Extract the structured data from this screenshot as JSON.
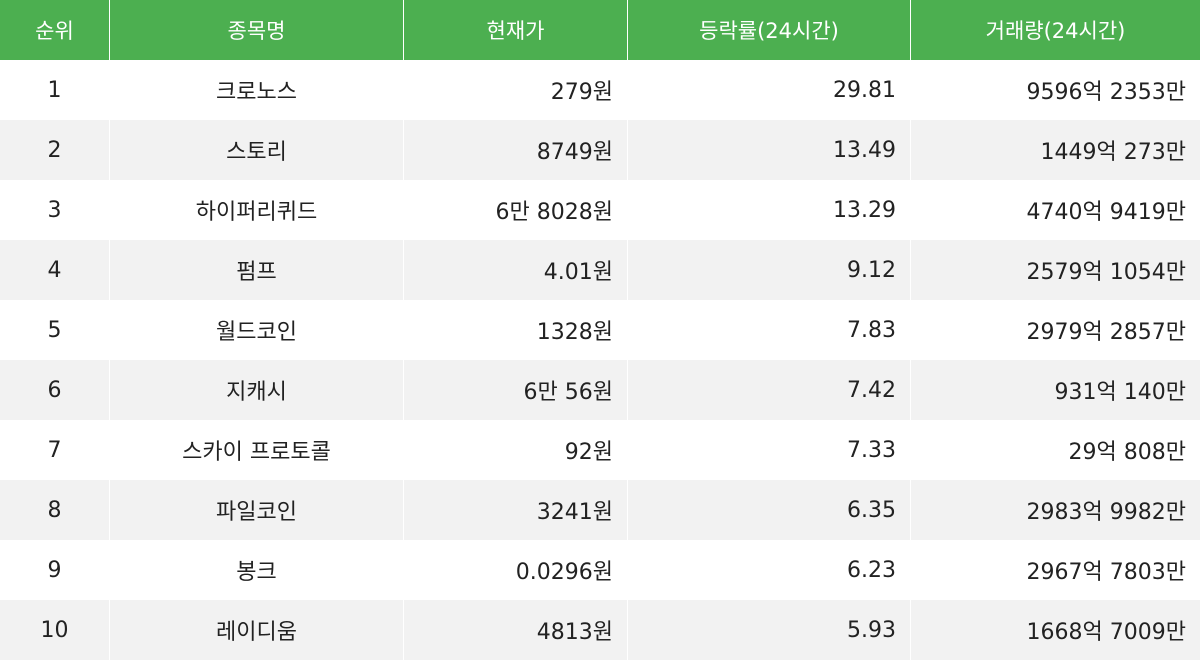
{
  "columns": {
    "rank": "순위",
    "name": "종목명",
    "price": "현재가",
    "rate": "등락률(24시간)",
    "volume": "거래량(24시간)"
  },
  "colors": {
    "header_bg": "#4caf50",
    "header_text": "#ffffff",
    "stripe": "#f2f2f2"
  },
  "rows": [
    {
      "rank": "1",
      "name": "크로노스",
      "price": "279원",
      "rate": "29.81",
      "volume": "9596억 2353만"
    },
    {
      "rank": "2",
      "name": "스토리",
      "price": "8749원",
      "rate": "13.49",
      "volume": "1449억 273만"
    },
    {
      "rank": "3",
      "name": "하이퍼리퀴드",
      "price": "6만 8028원",
      "rate": "13.29",
      "volume": "4740억 9419만"
    },
    {
      "rank": "4",
      "name": "펌프",
      "price": "4.01원",
      "rate": "9.12",
      "volume": "2579억 1054만"
    },
    {
      "rank": "5",
      "name": "월드코인",
      "price": "1328원",
      "rate": "7.83",
      "volume": "2979억 2857만"
    },
    {
      "rank": "6",
      "name": "지캐시",
      "price": "6만 56원",
      "rate": "7.42",
      "volume": "931억 140만"
    },
    {
      "rank": "7",
      "name": "스카이 프로토콜",
      "price": "92원",
      "rate": "7.33",
      "volume": "29억 808만"
    },
    {
      "rank": "8",
      "name": "파일코인",
      "price": "3241원",
      "rate": "6.35",
      "volume": "2983억 9982만"
    },
    {
      "rank": "9",
      "name": "봉크",
      "price": "0.0296원",
      "rate": "6.23",
      "volume": "2967억 7803만"
    },
    {
      "rank": "10",
      "name": "레이디움",
      "price": "4813원",
      "rate": "5.93",
      "volume": "1668억 7009만"
    }
  ]
}
